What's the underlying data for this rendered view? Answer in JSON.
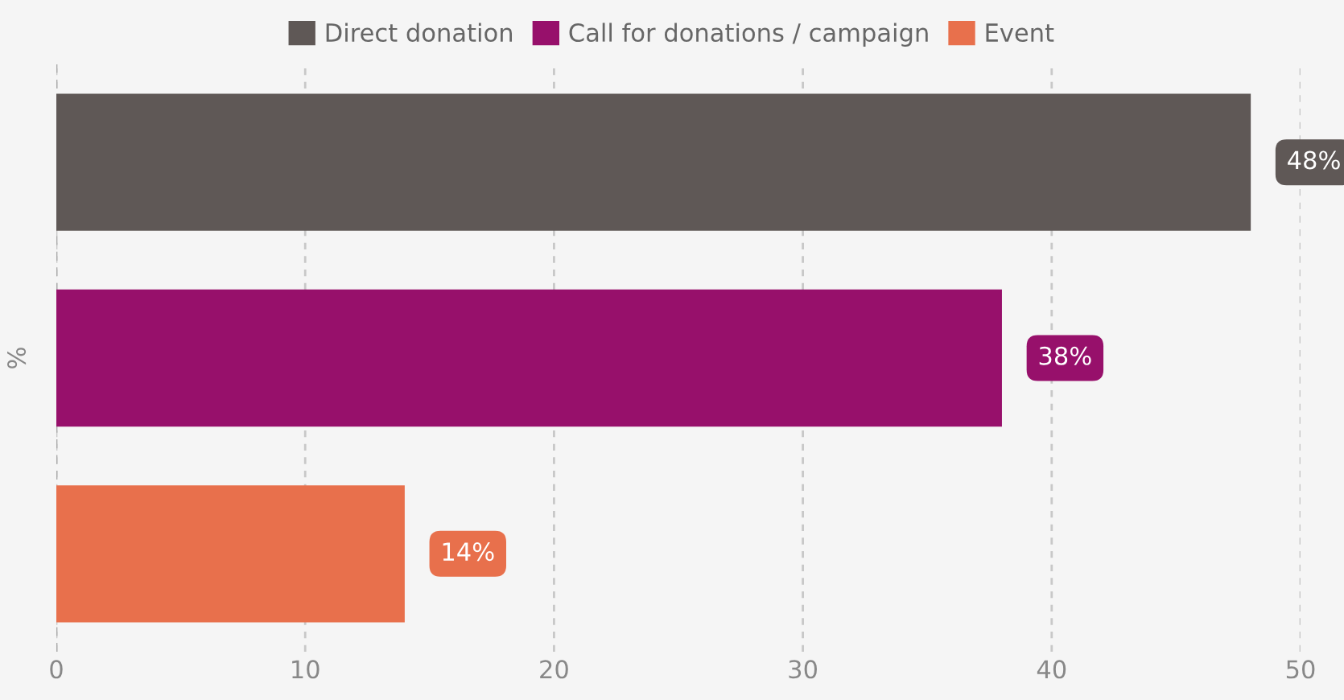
{
  "chart_data": {
    "type": "bar",
    "orientation": "horizontal",
    "categories": [
      null,
      null,
      null
    ],
    "ylabel": "%",
    "series": [
      {
        "name": "Direct donation",
        "color": "#5f5856",
        "values": [
          48,
          null,
          null
        ],
        "value_labels": [
          "48%",
          null,
          null
        ]
      },
      {
        "name": "Call for donations / campaign",
        "color": "#97106b",
        "values": [
          null,
          38,
          null
        ],
        "value_labels": [
          null,
          "38%",
          null
        ]
      },
      {
        "name": "Event",
        "color": "#e8704c",
        "values": [
          null,
          null,
          14
        ],
        "value_labels": [
          null,
          null,
          "14%"
        ]
      }
    ],
    "xlim": [
      0,
      50
    ],
    "xticks": [
      0,
      10,
      20,
      30,
      40,
      50
    ],
    "grid": "x",
    "legend": "top"
  }
}
